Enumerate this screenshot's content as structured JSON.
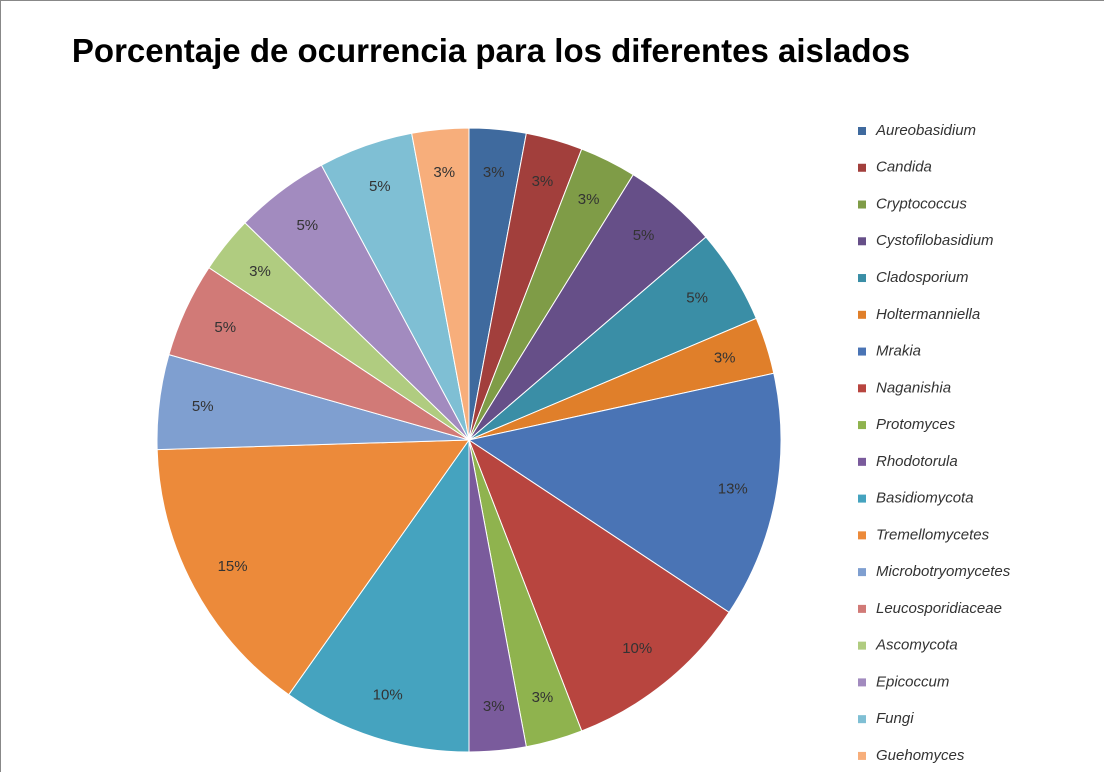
{
  "chart_data": {
    "type": "pie",
    "title": "Porcentaje de ocurrencia para los diferentes aislados",
    "categories": [
      "Aureobasidium",
      "Candida",
      "Cryptococcus",
      "Cystofilobasidium",
      "Cladosporium",
      "Holtermanniella",
      "Mrakia",
      "Naganishia",
      "Protomyces",
      "Rhodotorula",
      "Basidiomycota",
      "Tremellomycetes",
      "Microbotryomycetes",
      "Leucosporidiaceae",
      "Ascomycota",
      "Epicoccum",
      "Fungi",
      "Guehomyces"
    ],
    "values": [
      3,
      3,
      3,
      5,
      5,
      3,
      13,
      10,
      3,
      3,
      10,
      15,
      5,
      5,
      3,
      5,
      5,
      3
    ],
    "value_labels": [
      "3%",
      "3%",
      "3%",
      "5%",
      "5%",
      "3%",
      "13%",
      "10%",
      "3%",
      "3%",
      "10%",
      "15%",
      "5%",
      "5%",
      "3%",
      "5%",
      "5%",
      "3%"
    ],
    "colors": [
      "#3f6a9e",
      "#a23f3c",
      "#7f9c47",
      "#664f88",
      "#3a8ea6",
      "#e07f2a",
      "#4a74b5",
      "#b8453f",
      "#8fb34e",
      "#7a5b9c",
      "#45a3bf",
      "#ec8a3a",
      "#7f9fd0",
      "#d17a77",
      "#b0cc80",
      "#a28bbf",
      "#7fbfd4",
      "#f7ae7b"
    ],
    "legend": "right"
  }
}
